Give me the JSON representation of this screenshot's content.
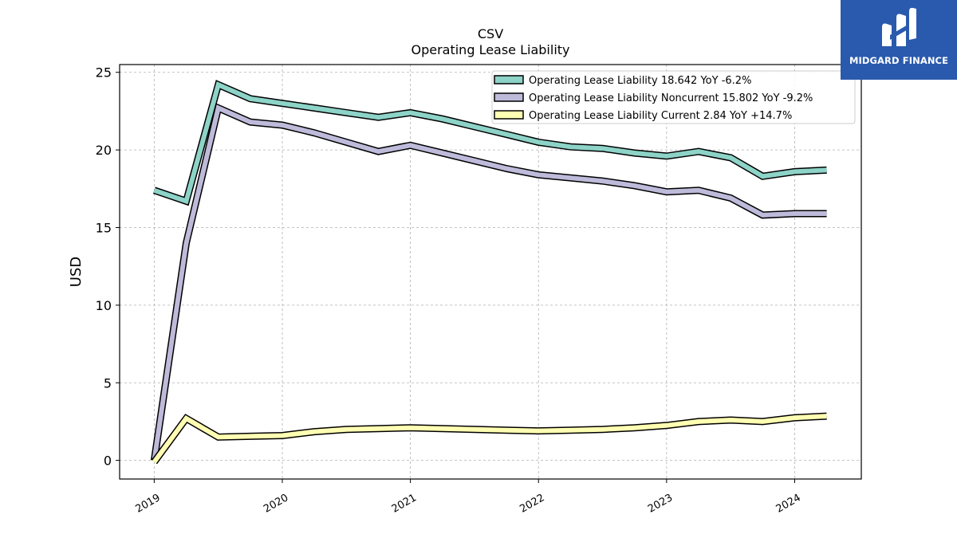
{
  "chart_data": {
    "type": "line",
    "title": "CSV",
    "subtitle": "Operating Lease Liability",
    "ylabel": "USD",
    "xlabel": "",
    "ylim": [
      -1.2,
      25.5
    ],
    "xlim": [
      2018.73,
      2024.52
    ],
    "yticks": [
      0,
      5,
      10,
      15,
      20,
      25
    ],
    "xticks": [
      {
        "value": 2019,
        "label": "2019"
      },
      {
        "value": 2020,
        "label": "2020"
      },
      {
        "value": 2021,
        "label": "2021"
      },
      {
        "value": 2022,
        "label": "2022"
      },
      {
        "value": 2023,
        "label": "2023"
      },
      {
        "value": 2024,
        "label": "2024"
      }
    ],
    "grid": true,
    "legend_position": "top-right",
    "series": [
      {
        "name": "Operating Lease Liability  18.642 YoY -6.2%",
        "color": "#8dd3c7",
        "x": [
          2019.0,
          2019.25,
          2019.5,
          2019.75,
          2020.0,
          2020.25,
          2020.5,
          2020.75,
          2021.0,
          2021.25,
          2021.5,
          2021.75,
          2022.0,
          2022.25,
          2022.5,
          2022.75,
          2023.0,
          2023.25,
          2023.5,
          2023.75,
          2024.0,
          2024.25
        ],
        "y": [
          17.4,
          16.7,
          24.2,
          23.3,
          23.0,
          22.7,
          22.4,
          22.1,
          22.4,
          22.0,
          21.5,
          21.0,
          20.5,
          20.2,
          20.1,
          19.8,
          19.6,
          19.9,
          19.5,
          18.3,
          18.6,
          18.7
        ]
      },
      {
        "name": "Operating Lease Liability Noncurrent  15.802 YoY -9.2%",
        "color": "#bebada",
        "x": [
          2019.0,
          2019.25,
          2019.5,
          2019.75,
          2020.0,
          2020.25,
          2020.5,
          2020.75,
          2021.0,
          2021.25,
          2021.5,
          2021.75,
          2022.0,
          2022.25,
          2022.5,
          2022.75,
          2023.0,
          2023.25,
          2023.5,
          2023.75,
          2024.0,
          2024.25
        ],
        "y": [
          0.0,
          14.0,
          22.7,
          21.8,
          21.6,
          21.1,
          20.5,
          19.9,
          20.3,
          19.8,
          19.3,
          18.8,
          18.4,
          18.2,
          18.0,
          17.7,
          17.3,
          17.4,
          16.9,
          15.8,
          15.9,
          15.9
        ]
      },
      {
        "name": "Operating Lease Liability Current  2.84 YoY +14.7%",
        "color": "#ffffb3",
        "x": [
          2019.0,
          2019.25,
          2019.5,
          2019.75,
          2020.0,
          2020.25,
          2020.5,
          2020.75,
          2021.0,
          2021.25,
          2021.5,
          2021.75,
          2022.0,
          2022.25,
          2022.5,
          2022.75,
          2023.0,
          2023.25,
          2023.5,
          2023.75,
          2024.0,
          2024.25
        ],
        "y": [
          -0.1,
          2.7,
          1.5,
          1.55,
          1.6,
          1.85,
          2.0,
          2.05,
          2.1,
          2.05,
          2.0,
          1.95,
          1.9,
          1.95,
          2.0,
          2.1,
          2.25,
          2.5,
          2.6,
          2.5,
          2.75,
          2.85
        ]
      }
    ]
  },
  "logo": {
    "text": "MIDGARD FINANCE",
    "background": "#2a5aad"
  }
}
